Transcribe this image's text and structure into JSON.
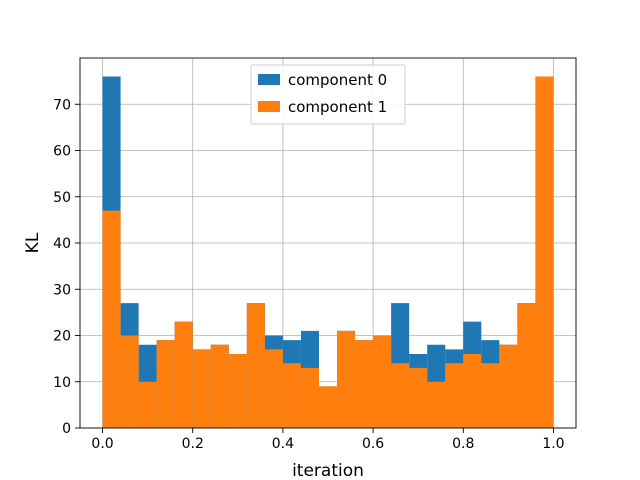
{
  "chart_data": {
    "type": "bar",
    "title": "",
    "xlabel": "iteration",
    "ylabel": "KL",
    "xlim": [
      -0.05,
      1.05
    ],
    "ylim": [
      0,
      80
    ],
    "grid": true,
    "legend_position": "top-center",
    "bin_width": 0.04,
    "xticks": [
      0.0,
      0.2,
      0.4,
      0.6,
      0.8,
      1.0
    ],
    "xtick_labels": [
      "0.0",
      "0.2",
      "0.4",
      "0.6",
      "0.8",
      "1.0"
    ],
    "yticks": [
      0,
      10,
      20,
      30,
      40,
      50,
      60,
      70
    ],
    "ytick_labels": [
      "0",
      "10",
      "20",
      "30",
      "40",
      "50",
      "60",
      "70"
    ],
    "bin_starts": [
      0.0,
      0.04,
      0.08,
      0.12,
      0.16,
      0.2,
      0.24,
      0.28,
      0.32,
      0.36,
      0.4,
      0.44,
      0.48,
      0.52,
      0.56,
      0.6,
      0.64,
      0.68,
      0.72,
      0.76,
      0.8,
      0.84,
      0.88,
      0.92,
      0.96
    ],
    "series": [
      {
        "name": "component 0",
        "color": "#1f77b4",
        "values": [
          76,
          27,
          18,
          19,
          23,
          17,
          18,
          16,
          27,
          20,
          19,
          21,
          9,
          21,
          19,
          20,
          27,
          16,
          18,
          17,
          23,
          19,
          18,
          27,
          76
        ]
      },
      {
        "name": "component 1",
        "color": "#ff7f0e",
        "values": [
          47,
          20,
          10,
          19,
          23,
          17,
          18,
          16,
          27,
          17,
          14,
          13,
          9,
          21,
          19,
          20,
          14,
          13,
          10,
          14,
          16,
          14,
          18,
          27,
          76
        ]
      }
    ]
  }
}
